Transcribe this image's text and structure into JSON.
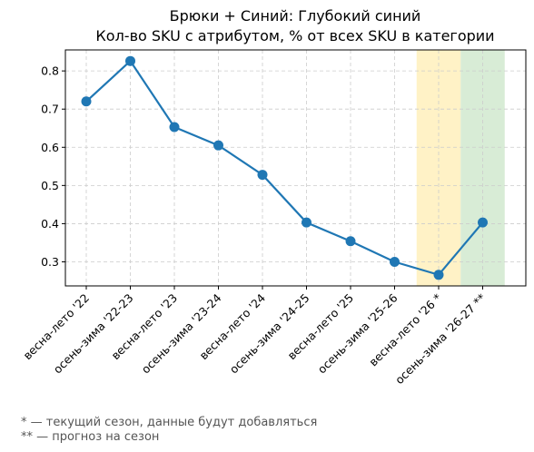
{
  "chart_data": {
    "type": "line",
    "title": "Брюки + Синий: Глубокий синий",
    "subtitle": "Кол-во SKU с атрибутом, % от всех SKU в категории",
    "categories": [
      "весна-лето '22",
      "осень-зима '22-23",
      "весна-лето '23",
      "осень-зима '23-24",
      "весна-лето '24",
      "осень-зима '24-25",
      "весна-лето '25",
      "осень-зима '25-26",
      "весна-лето '26 *",
      "осень-зима '26-27 **"
    ],
    "series": [
      {
        "values": [
          0.72,
          0.826,
          0.653,
          0.605,
          0.528,
          0.403,
          0.354,
          0.3,
          0.266,
          0.403
        ],
        "color": "#1f77b4"
      }
    ],
    "yticks": [
      "0.3",
      "0.4",
      "0.5",
      "0.6",
      "0.7",
      "0.8"
    ],
    "ylim": [
      0.237,
      0.855
    ],
    "grid": true,
    "highlights": [
      {
        "category": "весна-лето '26 *",
        "color": "#fff2c6"
      },
      {
        "category": "осень-зима '26-27 **",
        "color": "#d8ecd6"
      }
    ],
    "footnotes": [
      "* — текущий сезон, данные будут добавляться",
      "** — прогноз на сезон"
    ]
  }
}
